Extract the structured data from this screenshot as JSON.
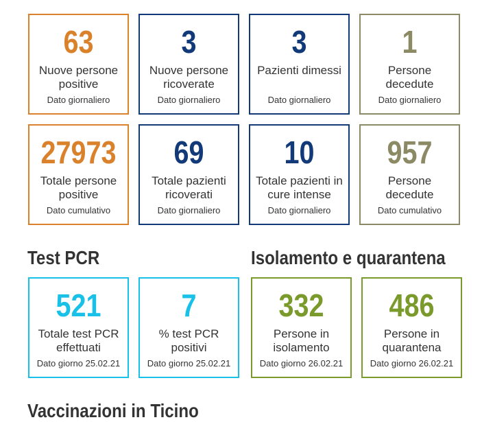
{
  "daily_cards": [
    {
      "value": "63",
      "label": "Nuove persone positive",
      "sub": "Dato giornaliero"
    },
    {
      "value": "3",
      "label": "Nuove persone ricoverate",
      "sub": "Dato giornaliero"
    },
    {
      "value": "3",
      "label": "Pazienti dimessi",
      "sub": "Dato giornaliero"
    },
    {
      "value": "1",
      "label": "Persone decedute",
      "sub": "Dato giornaliero"
    }
  ],
  "total_cards": [
    {
      "value": "27973",
      "label": "Totale persone positive",
      "sub": "Dato cumulativo"
    },
    {
      "value": "69",
      "label": "Totale pazienti ricoverati",
      "sub": "Dato giornaliero"
    },
    {
      "value": "10",
      "label": "Totale pazienti in cure intense",
      "sub": "Dato giornaliero"
    },
    {
      "value": "957",
      "label": "Persone decedute",
      "sub": "Dato cumulativo"
    }
  ],
  "pcr": {
    "title": "Test PCR",
    "cards": [
      {
        "value": "521",
        "label": "Totale test PCR effettuati",
        "sub": "Dato giorno 25.02.21"
      },
      {
        "value": "7",
        "label": "% test PCR positivi",
        "sub": "Dato giorno 25.02.21"
      }
    ]
  },
  "isolation": {
    "title": "Isolamento e quarantena",
    "cards": [
      {
        "value": "332",
        "label": "Persone in isolamento",
        "sub": "Dato giorno 26.02.21"
      },
      {
        "value": "486",
        "label": "Persone in quarantena",
        "sub": "Dato giorno 26.02.21"
      }
    ]
  },
  "next_section_title": "Vaccinazioni in Ticino",
  "colors": {
    "orange": "#d9822b",
    "navy": "#123a78",
    "olive": "#8c8a64",
    "cyan": "#19c1e8",
    "green": "#7a9a2b"
  }
}
